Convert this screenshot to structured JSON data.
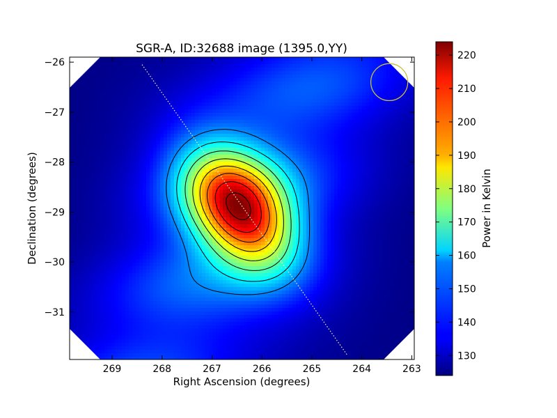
{
  "chart_data": {
    "type": "heatmap",
    "title": "SGR-A, ID:32688 image (1395.0,YY)",
    "xlabel": "Right Ascension (degrees)",
    "ylabel": "Declination (degrees)",
    "xlim": [
      269.85,
      262.95
    ],
    "ylim": [
      -31.95,
      -25.9
    ],
    "xticks": [
      269,
      268,
      267,
      266,
      265,
      264,
      263
    ],
    "yticks": [
      -26,
      -27,
      -28,
      -29,
      -30,
      -31
    ],
    "xtick_labels": [
      "269",
      "268",
      "267",
      "266",
      "265",
      "264",
      "263"
    ],
    "ytick_labels": [
      "−26",
      "−27",
      "−28",
      "−29",
      "−30",
      "−31"
    ],
    "colormap": "jet",
    "colorbar": {
      "label": "Power in Kelvin",
      "range": [
        124,
        224
      ],
      "ticks": [
        130,
        140,
        150,
        160,
        170,
        180,
        190,
        200,
        210,
        220
      ],
      "tick_labels": [
        "130",
        "140",
        "150",
        "160",
        "170",
        "180",
        "190",
        "200",
        "210",
        "220"
      ]
    },
    "source": {
      "name": "SGR-A",
      "ra": 266.45,
      "dec": -28.95,
      "peak_kelvin": 222
    },
    "background_kelvin": 124,
    "contours": true,
    "galactic_plane": {
      "style": "dotted",
      "from": [
        268.4,
        -26.05
      ],
      "to": [
        264.3,
        -31.85
      ]
    },
    "beam": {
      "shape": "circle",
      "center": [
        263.45,
        -26.4
      ],
      "radius_deg": 0.37,
      "color": "#c8c03a"
    },
    "grid": false
  }
}
